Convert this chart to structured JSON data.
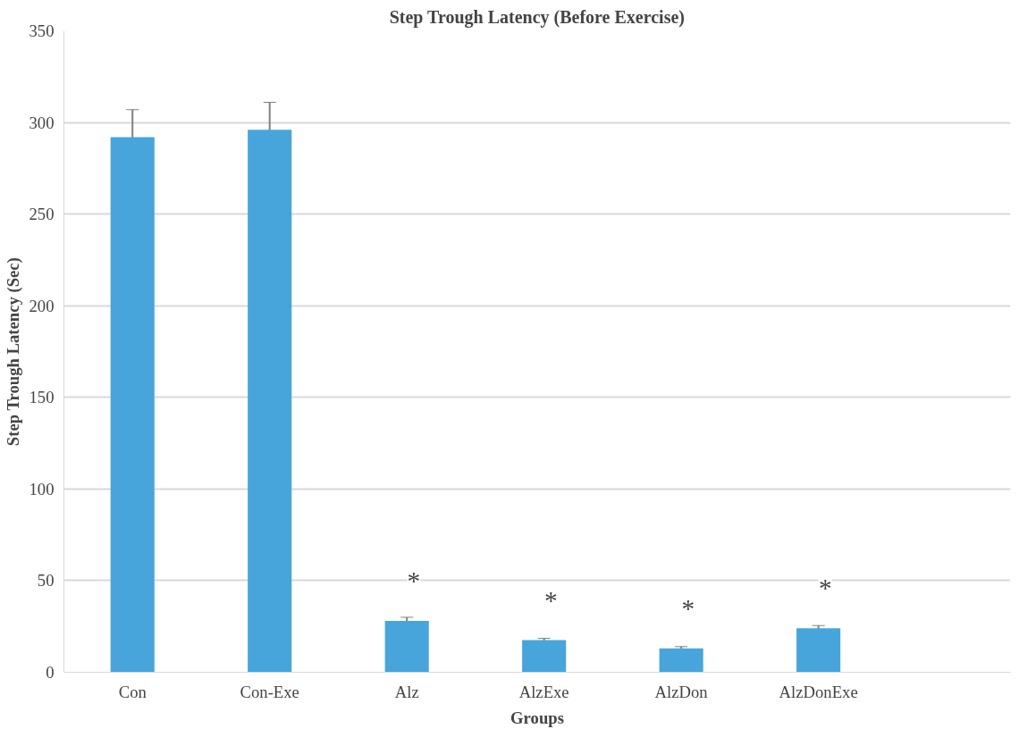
{
  "chart_data": {
    "type": "bar",
    "title": "Step Trough Latency (Before Exercise)",
    "xlabel": "Groups",
    "ylabel": "Step Trough Latency (Sec)",
    "categories": [
      "Con",
      "Con-Exe",
      "Alz",
      "AlzExe",
      "AlzDon",
      "AlzDonExe"
    ],
    "values": [
      292,
      296,
      28,
      17.5,
      13,
      24
    ],
    "errors": [
      15,
      15,
      2,
      1,
      1,
      1.5
    ],
    "color": "#47a5db",
    "ylim": [
      0,
      350
    ],
    "yticks": [
      0,
      50,
      100,
      150,
      200,
      250,
      300,
      350
    ],
    "grid": "y",
    "annotations": [
      "*",
      "*",
      "*",
      "*"
    ]
  }
}
